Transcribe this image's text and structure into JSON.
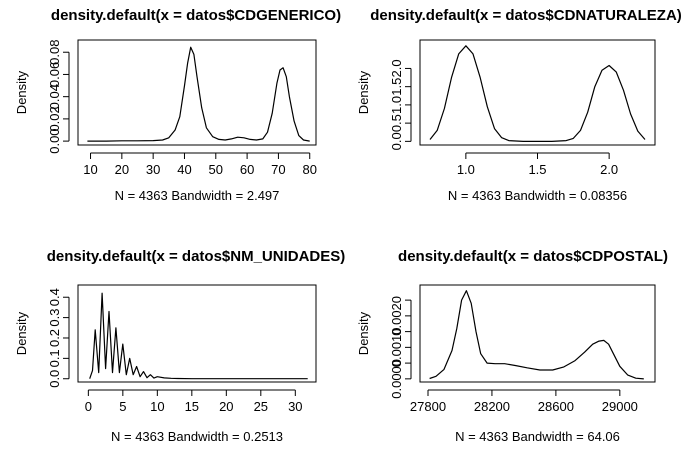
{
  "chart_data": [
    {
      "type": "line",
      "title": "density.default(x = datos$CDGENERICO)",
      "xlabel": "N = 4363   Bandwidth = 2.497",
      "ylabel": "Density",
      "xlim": [
        6,
        82
      ],
      "ylim": [
        -0.0035,
        0.091
      ],
      "xticks": [
        10,
        20,
        30,
        40,
        50,
        60,
        70,
        80
      ],
      "xtick_labels": [
        "10",
        "20",
        "30",
        "40",
        "50",
        "60",
        "70",
        "80"
      ],
      "yticks": [
        0,
        0.02,
        0.04,
        0.06,
        0.08
      ],
      "ytick_labels": [
        "0.00",
        "0.02",
        "0.04",
        "0.06",
        "0.08"
      ],
      "grid": false,
      "series": [
        {
          "x": [
            9,
            15,
            20,
            25,
            30,
            33,
            35,
            37,
            38.5,
            40,
            41,
            42,
            43,
            44,
            45.5,
            47,
            49,
            51,
            53,
            55,
            57,
            59,
            61,
            63,
            65,
            66.5,
            68,
            69.5,
            70.5,
            71.5,
            72.5,
            73.5,
            75,
            76.5,
            78,
            80
          ],
          "y": [
            0,
            0,
            0.0003,
            0.0003,
            0.0005,
            0.001,
            0.003,
            0.01,
            0.022,
            0.05,
            0.07,
            0.0845,
            0.078,
            0.058,
            0.03,
            0.012,
            0.004,
            0.0015,
            0.001,
            0.002,
            0.0035,
            0.003,
            0.0015,
            0.001,
            0.002,
            0.008,
            0.025,
            0.052,
            0.064,
            0.066,
            0.058,
            0.04,
            0.018,
            0.005,
            0.001,
            0
          ]
        }
      ]
    },
    {
      "type": "line",
      "title": "density.default(x = datos$CDNATURALEZA)",
      "xlabel": "N = 4363   Bandwidth = 0.08356",
      "ylabel": "Density",
      "xlim": [
        0.68,
        2.32
      ],
      "ylim": [
        -0.1,
        2.78
      ],
      "xticks": [
        1.0,
        1.5,
        2.0
      ],
      "xtick_labels": [
        "1.0",
        "1.5",
        "2.0"
      ],
      "yticks": [
        0,
        0.5,
        1.0,
        1.5,
        2.0
      ],
      "ytick_labels": [
        "0.0",
        "0.5",
        "1.0",
        "1.5",
        "2.0"
      ],
      "grid": false,
      "series": [
        {
          "x": [
            0.75,
            0.8,
            0.85,
            0.9,
            0.95,
            1.0,
            1.05,
            1.1,
            1.15,
            1.2,
            1.25,
            1.3,
            1.4,
            1.5,
            1.6,
            1.7,
            1.75,
            1.8,
            1.85,
            1.9,
            1.95,
            2.0,
            2.05,
            2.1,
            2.15,
            2.2,
            2.25
          ],
          "y": [
            0.05,
            0.3,
            0.9,
            1.75,
            2.4,
            2.62,
            2.4,
            1.75,
            0.95,
            0.35,
            0.1,
            0.02,
            0,
            0,
            0,
            0.02,
            0.08,
            0.3,
            0.8,
            1.5,
            1.95,
            2.08,
            1.9,
            1.4,
            0.75,
            0.28,
            0.05
          ]
        }
      ]
    },
    {
      "type": "line",
      "title": "density.default(x = datos$NM_UNIDADES)",
      "xlabel": "N = 4363   Bandwidth = 0.2513",
      "ylabel": "Density",
      "xlim": [
        -1.5,
        33
      ],
      "ylim": [
        -0.016,
        0.46
      ],
      "xticks": [
        0,
        5,
        10,
        15,
        20,
        25,
        30
      ],
      "xtick_labels": [
        "0",
        "5",
        "10",
        "15",
        "20",
        "25",
        "30"
      ],
      "yticks": [
        0,
        0.1,
        0.2,
        0.3,
        0.4
      ],
      "ytick_labels": [
        "0.0",
        "0.1",
        "0.2",
        "0.3",
        "0.4"
      ],
      "grid": false,
      "series": [
        {
          "x": [
            0.2,
            0.6,
            1.0,
            1.5,
            2.0,
            2.5,
            3.0,
            3.5,
            4.0,
            4.5,
            5.0,
            5.5,
            6.0,
            6.5,
            7.0,
            7.5,
            8.0,
            8.5,
            9.0,
            9.5,
            10.0,
            11,
            12,
            13,
            15,
            20,
            25,
            31.8
          ],
          "y": [
            0,
            0.04,
            0.24,
            0.03,
            0.42,
            0.05,
            0.33,
            0.03,
            0.25,
            0.03,
            0.17,
            0.02,
            0.1,
            0.02,
            0.06,
            0.01,
            0.035,
            0.005,
            0.02,
            0.003,
            0.01,
            0.004,
            0.002,
            0.001,
            0,
            0,
            0,
            0
          ]
        }
      ]
    },
    {
      "type": "line",
      "title": "density.default(x = datos$CDPOSTAL)",
      "xlabel": "N = 4363   Bandwidth = 64.06",
      "ylabel": "Density",
      "xlim": [
        27750,
        29220
      ],
      "ylim": [
        -0.0001,
        0.00298
      ],
      "xticks": [
        27800,
        28200,
        28600,
        29000
      ],
      "xtick_labels": [
        "27800",
        "28200",
        "28600",
        "29000"
      ],
      "yticks": [
        0,
        0.0005,
        0.001,
        0.0015,
        0.002,
        0.0025
      ],
      "ytick_labels": [
        "0.0000",
        "",
        "0.0010",
        "",
        "0.0020",
        ""
      ],
      "grid": false,
      "series": [
        {
          "x": [
            27810,
            27850,
            27900,
            27950,
            27980,
            28010,
            28040,
            28070,
            28100,
            28130,
            28170,
            28220,
            28280,
            28350,
            28420,
            28500,
            28580,
            28650,
            28720,
            28780,
            28830,
            28870,
            28900,
            28930,
            28960,
            29000,
            29050,
            29100,
            29150
          ],
          "y": [
            1e-05,
            8e-05,
            0.0003,
            0.0009,
            0.0016,
            0.0025,
            0.0028,
            0.0024,
            0.0015,
            0.0008,
            0.0005,
            0.00048,
            0.00048,
            0.00042,
            0.00035,
            0.00028,
            0.00028,
            0.00038,
            0.00058,
            0.00085,
            0.0011,
            0.0012,
            0.00122,
            0.0011,
            0.0008,
            0.0004,
            0.00012,
            2e-05,
            0
          ]
        }
      ]
    }
  ]
}
